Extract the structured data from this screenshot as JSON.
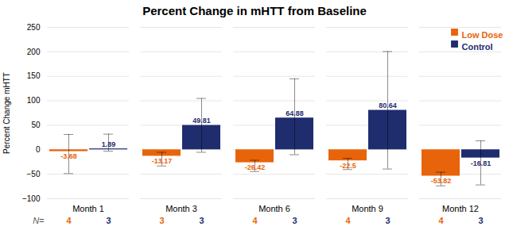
{
  "chart_data": {
    "type": "bar",
    "title": "Percent Change in mHTT from Baseline",
    "ylabel": "Percent Change mHTT",
    "categories": [
      "Month 1",
      "Month 3",
      "Month 6",
      "Month 9",
      "Month 12"
    ],
    "series": [
      {
        "name": "Low Dose",
        "color": "#E8640A",
        "values": [
          -3.68,
          -13.17,
          -26.42,
          -22.5,
          -53.82
        ],
        "error_low": [
          45,
          20,
          18,
          18,
          20
        ],
        "error_high": [
          35,
          8,
          5,
          5,
          8
        ],
        "n": [
          4,
          3,
          4,
          4,
          4
        ]
      },
      {
        "name": "Control",
        "color": "#1F2D6E",
        "values": [
          1.89,
          49.81,
          64.88,
          80.64,
          -16.81
        ],
        "error_low": [
          5,
          55,
          75,
          120,
          55
        ],
        "error_high": [
          30,
          55,
          80,
          120,
          35
        ],
        "n": [
          3,
          3,
          3,
          3,
          3
        ]
      }
    ],
    "n_label": "N=",
    "ylim": [
      -100,
      250
    ],
    "yticks": [
      -100,
      -50,
      0,
      50,
      100,
      150,
      200,
      250
    ],
    "grid": true,
    "legend": "upper right",
    "data_labels": true
  }
}
